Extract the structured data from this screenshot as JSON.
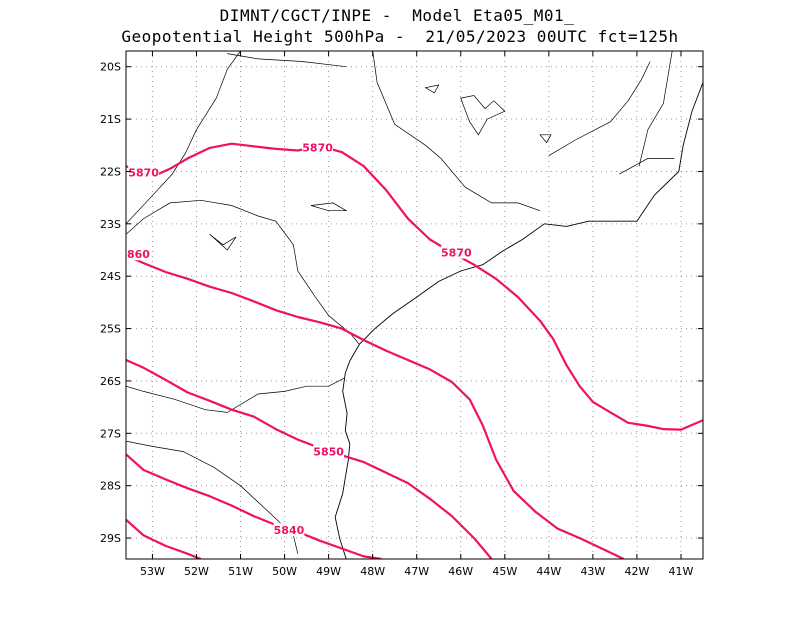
{
  "title_line1": "DIMNT/CGCT/INPE -  Model Eta05_M01_",
  "title_line2": "Geopotential Height 500hPa -  21/05/2023 00UTC fct=125h",
  "contour_color": "#ee1166",
  "lat_ticks": [
    {
      "value": -20,
      "label": "20S"
    },
    {
      "value": -21,
      "label": "21S"
    },
    {
      "value": -22,
      "label": "22S"
    },
    {
      "value": -23,
      "label": "23S"
    },
    {
      "value": -24,
      "label": "24S"
    },
    {
      "value": -25,
      "label": "25S"
    },
    {
      "value": -26,
      "label": "26S"
    },
    {
      "value": -27,
      "label": "27S"
    },
    {
      "value": -28,
      "label": "28S"
    },
    {
      "value": -29,
      "label": "29S"
    }
  ],
  "lon_ticks": [
    {
      "value": -53,
      "label": "53W"
    },
    {
      "value": -52,
      "label": "52W"
    },
    {
      "value": -51,
      "label": "51W"
    },
    {
      "value": -50,
      "label": "50W"
    },
    {
      "value": -49,
      "label": "49W"
    },
    {
      "value": -48,
      "label": "48W"
    },
    {
      "value": -47,
      "label": "47W"
    },
    {
      "value": -46,
      "label": "46W"
    },
    {
      "value": -45,
      "label": "45W"
    },
    {
      "value": -44,
      "label": "44W"
    },
    {
      "value": -43,
      "label": "43W"
    },
    {
      "value": -42,
      "label": "42W"
    },
    {
      "value": -41,
      "label": "41W"
    }
  ],
  "map_extent": {
    "lon_min": -53.6,
    "lon_max": -40.5,
    "lat_min": -29.4,
    "lat_max": -19.7
  },
  "contours": [
    {
      "level": 5870,
      "label": "5870",
      "points": [
        [
          -53.6,
          -21.9
        ],
        [
          -53.3,
          -22.0
        ],
        [
          -53.0,
          -22.1
        ],
        [
          -52.6,
          -21.95
        ],
        [
          -52.2,
          -21.75
        ],
        [
          -51.7,
          -21.55
        ],
        [
          -51.2,
          -21.47
        ],
        [
          -50.7,
          -21.52
        ],
        [
          -50.2,
          -21.57
        ],
        [
          -49.7,
          -21.6
        ],
        [
          -49.2,
          -21.52
        ],
        [
          -48.7,
          -21.63
        ],
        [
          -48.2,
          -21.9
        ],
        [
          -47.7,
          -22.35
        ],
        [
          -47.2,
          -22.9
        ],
        [
          -46.7,
          -23.3
        ],
        [
          -46.2,
          -23.55
        ],
        [
          -45.7,
          -23.78
        ],
        [
          -45.2,
          -24.05
        ],
        [
          -44.7,
          -24.4
        ],
        [
          -44.2,
          -24.85
        ],
        [
          -43.9,
          -25.2
        ],
        [
          -43.6,
          -25.7
        ],
        [
          -43.3,
          -26.1
        ],
        [
          -43.0,
          -26.4
        ],
        [
          -42.6,
          -26.6
        ],
        [
          -42.2,
          -26.8
        ],
        [
          -41.8,
          -26.85
        ],
        [
          -41.4,
          -26.92
        ],
        [
          -41.0,
          -26.93
        ],
        [
          -40.5,
          -26.75
        ]
      ],
      "label_at": [
        [
          -53.2,
          -22.02
        ],
        [
          -49.25,
          -21.54
        ],
        [
          -46.1,
          -23.55
        ]
      ]
    },
    {
      "level": 5860,
      "label": "860",
      "points": [
        [
          -53.6,
          -23.6
        ],
        [
          -53.2,
          -23.75
        ],
        [
          -52.7,
          -23.92
        ],
        [
          -52.2,
          -24.05
        ],
        [
          -51.7,
          -24.2
        ],
        [
          -51.2,
          -24.32
        ],
        [
          -50.7,
          -24.48
        ],
        [
          -50.2,
          -24.65
        ],
        [
          -49.7,
          -24.78
        ],
        [
          -49.2,
          -24.88
        ],
        [
          -48.7,
          -25.0
        ],
        [
          -48.2,
          -25.22
        ],
        [
          -47.7,
          -25.42
        ],
        [
          -47.2,
          -25.6
        ],
        [
          -46.7,
          -25.78
        ],
        [
          -46.2,
          -26.02
        ],
        [
          -45.8,
          -26.35
        ],
        [
          -45.5,
          -26.85
        ],
        [
          -45.2,
          -27.5
        ],
        [
          -44.8,
          -28.1
        ],
        [
          -44.3,
          -28.5
        ],
        [
          -43.8,
          -28.82
        ],
        [
          -43.3,
          -29.0
        ],
        [
          -42.8,
          -29.2
        ],
        [
          -42.3,
          -29.4
        ]
      ],
      "label_at": [
        [
          -53.6,
          -23.58
        ]
      ]
    },
    {
      "level": 5850,
      "label": "5850",
      "points": [
        [
          -53.6,
          -25.6
        ],
        [
          -53.2,
          -25.75
        ],
        [
          -52.7,
          -25.98
        ],
        [
          -52.2,
          -26.22
        ],
        [
          -51.7,
          -26.38
        ],
        [
          -51.2,
          -26.55
        ],
        [
          -50.7,
          -26.68
        ],
        [
          -50.2,
          -26.92
        ],
        [
          -49.7,
          -27.12
        ],
        [
          -49.2,
          -27.28
        ],
        [
          -48.7,
          -27.42
        ],
        [
          -48.2,
          -27.55
        ],
        [
          -47.7,
          -27.75
        ],
        [
          -47.2,
          -27.95
        ],
        [
          -46.7,
          -28.25
        ],
        [
          -46.2,
          -28.58
        ],
        [
          -45.7,
          -29.0
        ],
        [
          -45.3,
          -29.4
        ]
      ],
      "label_at": [
        [
          -49.0,
          -27.35
        ]
      ]
    },
    {
      "level": 5840,
      "label": "5840",
      "points": [
        [
          -53.6,
          -27.4
        ],
        [
          -53.2,
          -27.7
        ],
        [
          -52.7,
          -27.88
        ],
        [
          -52.2,
          -28.05
        ],
        [
          -51.7,
          -28.2
        ],
        [
          -51.2,
          -28.38
        ],
        [
          -50.7,
          -28.58
        ],
        [
          -50.2,
          -28.75
        ],
        [
          -49.7,
          -28.88
        ],
        [
          -49.2,
          -29.05
        ],
        [
          -48.7,
          -29.2
        ],
        [
          -48.2,
          -29.35
        ],
        [
          -47.8,
          -29.4
        ]
      ],
      "label_at": [
        [
          -49.9,
          -28.85
        ]
      ]
    },
    {
      "level": 5830,
      "label": "",
      "points": [
        [
          -53.6,
          -28.65
        ],
        [
          -53.2,
          -28.95
        ],
        [
          -52.7,
          -29.15
        ],
        [
          -52.2,
          -29.3
        ],
        [
          -51.9,
          -29.4
        ]
      ],
      "label_at": []
    }
  ],
  "coastline": [
    [
      -48.6,
      -29.4
    ],
    [
      -48.75,
      -29.0
    ],
    [
      -48.85,
      -28.6
    ],
    [
      -48.68,
      -28.15
    ],
    [
      -48.62,
      -27.85
    ],
    [
      -48.55,
      -27.5
    ],
    [
      -48.52,
      -27.2
    ],
    [
      -48.62,
      -26.95
    ],
    [
      -48.58,
      -26.62
    ],
    [
      -48.68,
      -26.2
    ],
    [
      -48.62,
      -25.85
    ],
    [
      -48.52,
      -25.62
    ],
    [
      -48.3,
      -25.3
    ],
    [
      -47.95,
      -25.0
    ],
    [
      -47.55,
      -24.72
    ],
    [
      -47.0,
      -24.4
    ],
    [
      -46.5,
      -24.1
    ],
    [
      -46.0,
      -23.9
    ],
    [
      -45.5,
      -23.78
    ],
    [
      -45.05,
      -23.52
    ],
    [
      -44.6,
      -23.3
    ],
    [
      -44.1,
      -23.0
    ],
    [
      -43.6,
      -23.05
    ],
    [
      -43.1,
      -22.95
    ],
    [
      -42.7,
      -22.95
    ],
    [
      -42.0,
      -22.95
    ],
    [
      -41.6,
      -22.45
    ],
    [
      -41.05,
      -22.0
    ],
    [
      -40.95,
      -21.5
    ],
    [
      -40.75,
      -20.85
    ],
    [
      -40.5,
      -20.3
    ]
  ],
  "borders": [
    [
      [
        -51.0,
        -19.7
      ],
      [
        -51.3,
        -20.05
      ],
      [
        -51.55,
        -20.6
      ],
      [
        -52.0,
        -21.2
      ],
      [
        -52.25,
        -21.65
      ],
      [
        -52.55,
        -22.05
      ],
      [
        -53.1,
        -22.55
      ],
      [
        -53.6,
        -23.0
      ]
    ],
    [
      [
        -53.6,
        -23.2
      ],
      [
        -53.2,
        -22.9
      ],
      [
        -52.6,
        -22.6
      ],
      [
        -51.9,
        -22.55
      ],
      [
        -51.2,
        -22.65
      ],
      [
        -50.6,
        -22.85
      ],
      [
        -50.2,
        -22.95
      ],
      [
        -49.8,
        -23.4
      ],
      [
        -49.7,
        -23.9
      ],
      [
        -49.3,
        -24.4
      ],
      [
        -49.0,
        -24.75
      ],
      [
        -48.5,
        -25.1
      ],
      [
        -48.3,
        -25.3
      ]
    ],
    [
      [
        -53.6,
        -26.1
      ],
      [
        -53.2,
        -26.2
      ],
      [
        -52.5,
        -26.35
      ],
      [
        -51.8,
        -26.55
      ],
      [
        -51.3,
        -26.6
      ],
      [
        -50.6,
        -26.25
      ],
      [
        -50.0,
        -26.2
      ],
      [
        -49.5,
        -26.1
      ],
      [
        -49.0,
        -26.1
      ],
      [
        -48.65,
        -25.95
      ]
    ],
    [
      [
        -53.6,
        -27.15
      ],
      [
        -53.0,
        -27.25
      ],
      [
        -52.3,
        -27.35
      ],
      [
        -51.6,
        -27.65
      ],
      [
        -51.0,
        -28.0
      ],
      [
        -50.3,
        -28.55
      ],
      [
        -49.8,
        -28.95
      ],
      [
        -49.7,
        -29.3
      ]
    ],
    [
      [
        -48.0,
        -19.7
      ],
      [
        -47.9,
        -20.3
      ],
      [
        -47.5,
        -21.1
      ],
      [
        -46.8,
        -21.5
      ],
      [
        -46.45,
        -21.75
      ],
      [
        -45.9,
        -22.3
      ],
      [
        -45.3,
        -22.6
      ],
      [
        -44.7,
        -22.6
      ],
      [
        -44.2,
        -22.75
      ]
    ],
    [
      [
        -44.0,
        -21.7
      ],
      [
        -43.4,
        -21.4
      ],
      [
        -42.6,
        -21.05
      ],
      [
        -42.2,
        -20.65
      ],
      [
        -41.9,
        -20.25
      ],
      [
        -41.7,
        -19.9
      ]
    ],
    [
      [
        -41.2,
        -19.7
      ],
      [
        -41.4,
        -20.7
      ],
      [
        -41.75,
        -21.2
      ],
      [
        -41.95,
        -21.9
      ]
    ],
    [
      [
        -51.3,
        -19.75
      ],
      [
        -50.6,
        -19.85
      ],
      [
        -49.6,
        -19.9
      ],
      [
        -48.6,
        -20.0
      ]
    ],
    [
      [
        -41.15,
        -21.75
      ],
      [
        -41.75,
        -21.75
      ],
      [
        -42.4,
        -22.05
      ]
    ]
  ],
  "lakes": [
    [
      [
        -46.0,
        -20.6
      ],
      [
        -45.7,
        -20.55
      ],
      [
        -45.45,
        -20.8
      ],
      [
        -45.25,
        -20.65
      ],
      [
        -45.0,
        -20.85
      ],
      [
        -45.4,
        -21.0
      ],
      [
        -45.6,
        -21.3
      ],
      [
        -45.8,
        -21.05
      ]
    ],
    [
      [
        -49.4,
        -22.65
      ],
      [
        -49.0,
        -22.75
      ],
      [
        -48.6,
        -22.75
      ],
      [
        -48.9,
        -22.6
      ]
    ],
    [
      [
        -51.7,
        -23.2
      ],
      [
        -51.4,
        -23.4
      ],
      [
        -51.1,
        -23.25
      ],
      [
        -51.3,
        -23.5
      ]
    ],
    [
      [
        -46.8,
        -20.4
      ],
      [
        -46.6,
        -20.5
      ],
      [
        -46.5,
        -20.35
      ]
    ],
    [
      [
        -44.2,
        -21.3
      ],
      [
        -44.05,
        -21.45
      ],
      [
        -43.95,
        -21.3
      ]
    ]
  ]
}
